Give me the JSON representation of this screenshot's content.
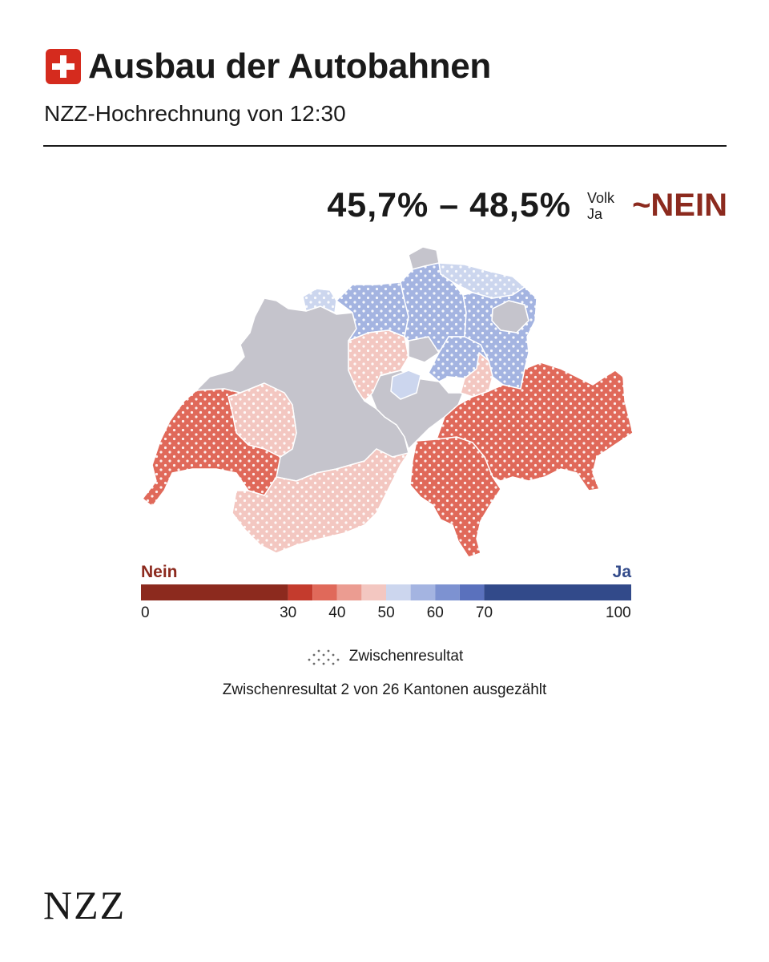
{
  "header": {
    "title": "Ausbau der Autobahnen",
    "subtitle": "NZZ-Hochrechnung von 12:30",
    "flag_icon": "swiss-flag-icon"
  },
  "result": {
    "range": "45,7% – 48,5%",
    "label_top": "Volk",
    "label_bottom": "Ja",
    "verdict": "~NEIN",
    "verdict_color": "#8c2a1e"
  },
  "legend": {
    "left_label": "Nein",
    "right_label": "Ja",
    "ticks": [
      "0",
      "30",
      "40",
      "50",
      "60",
      "70",
      "100"
    ],
    "bins": [
      {
        "from": 0,
        "to": 30,
        "color": "#8c2a1e"
      },
      {
        "from": 30,
        "to": 35,
        "color": "#c43b2d"
      },
      {
        "from": 35,
        "to": 40,
        "color": "#e0695a"
      },
      {
        "from": 40,
        "to": 45,
        "color": "#eb9c91"
      },
      {
        "from": 45,
        "to": 50,
        "color": "#f3c7c1"
      },
      {
        "from": 50,
        "to": 55,
        "color": "#ccd6ee"
      },
      {
        "from": 55,
        "to": 60,
        "color": "#a4b4e1"
      },
      {
        "from": 60,
        "to": 65,
        "color": "#7d92d1"
      },
      {
        "from": 65,
        "to": 70,
        "color": "#5a71bd"
      },
      {
        "from": 70,
        "to": 100,
        "color": "#324a8a"
      }
    ],
    "note_label": "Zwischenresultat",
    "note_icon": "dot-pattern-icon"
  },
  "status": "Zwischenresultat 2 von 26 Kantonen ausgezählt",
  "map": {
    "no_result_color": "#c5c4cc",
    "cantons": [
      {
        "name": "Genf / Waadt",
        "category": "35-40",
        "interim": true
      },
      {
        "name": "Freiburg",
        "category": "45-50",
        "interim": true
      },
      {
        "name": "Wallis",
        "category": "45-50",
        "interim": true
      },
      {
        "name": "Tessin",
        "category": "35-40",
        "interim": true
      },
      {
        "name": "Graubünden",
        "category": "35-40",
        "interim": true
      },
      {
        "name": "Luzern",
        "category": "45-50",
        "interim": true
      },
      {
        "name": "Glarus",
        "category": "45-50",
        "interim": true
      },
      {
        "name": "Zug",
        "category": "50-55",
        "interim": true
      },
      {
        "name": "Zürich",
        "category": "55-60",
        "interim": true
      },
      {
        "name": "Aargau",
        "category": "55-60",
        "interim": true
      },
      {
        "name": "St. Gallen",
        "category": "55-60",
        "interim": true
      },
      {
        "name": "Thurgau",
        "category": "50-55",
        "interim": true
      },
      {
        "name": "Basel",
        "category": "50-55",
        "interim": true
      }
    ]
  },
  "brand": "NZZ"
}
